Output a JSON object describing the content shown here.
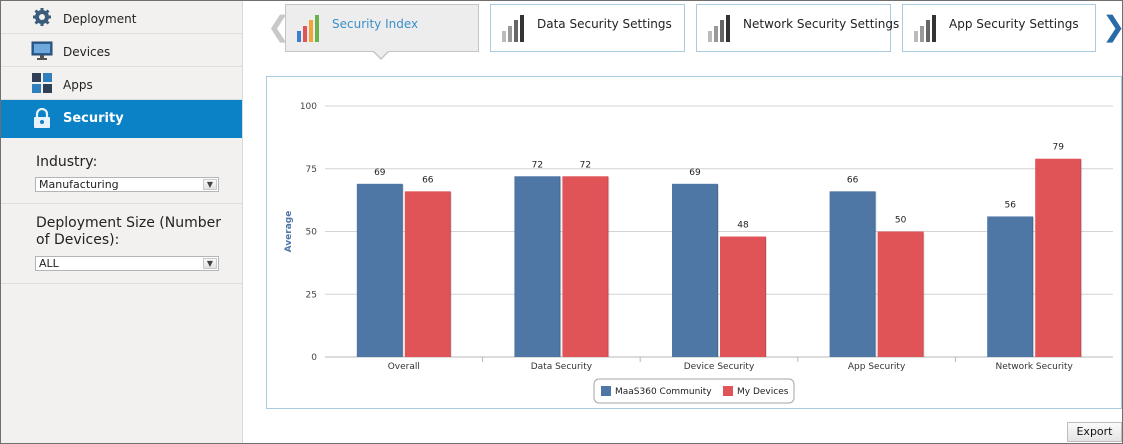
{
  "sidebar": {
    "items": [
      {
        "label": "Deployment",
        "icon": "gear-icon"
      },
      {
        "label": "Devices",
        "icon": "monitor-icon"
      },
      {
        "label": "Apps",
        "icon": "apps-grid-icon"
      },
      {
        "label": "Security",
        "icon": "lock-icon",
        "active": true
      }
    ],
    "industry_label": "Industry:",
    "industry_value": "Manufacturing",
    "deployment_size_label": "Deployment Size (Number of Devices):",
    "deployment_size_value": "ALL"
  },
  "tabs": [
    {
      "label": "Security Index",
      "icon": "color-bar-chart-icon",
      "active": true
    },
    {
      "label": "Data Security Settings",
      "icon": "gray-bar-chart-icon"
    },
    {
      "label": "Network Security Settings",
      "icon": "gray-bar-chart-icon"
    },
    {
      "label": "App Security Settings",
      "icon": "gray-bar-chart-icon"
    }
  ],
  "export_label": "Export",
  "colors": {
    "accent": "#0b82c6",
    "series_community": "#4e77a6",
    "series_my_devices": "#e05457",
    "tab_border": "#a9cbe0"
  },
  "chart_data": {
    "type": "bar",
    "title": "",
    "xlabel": "",
    "ylabel": "Average",
    "ylim": [
      0,
      100
    ],
    "yticks": [
      0,
      25,
      50,
      75,
      100
    ],
    "grid": true,
    "legend_position": "bottom-center",
    "categories": [
      "Overall",
      "Data Security",
      "Device Security",
      "App Security",
      "Network Security"
    ],
    "series": [
      {
        "name": "MaaS360 Community",
        "color": "#4e77a6",
        "values": [
          69,
          72,
          69,
          66,
          56
        ]
      },
      {
        "name": "My Devices",
        "color": "#e05457",
        "values": [
          66,
          72,
          48,
          50,
          79
        ]
      }
    ]
  }
}
